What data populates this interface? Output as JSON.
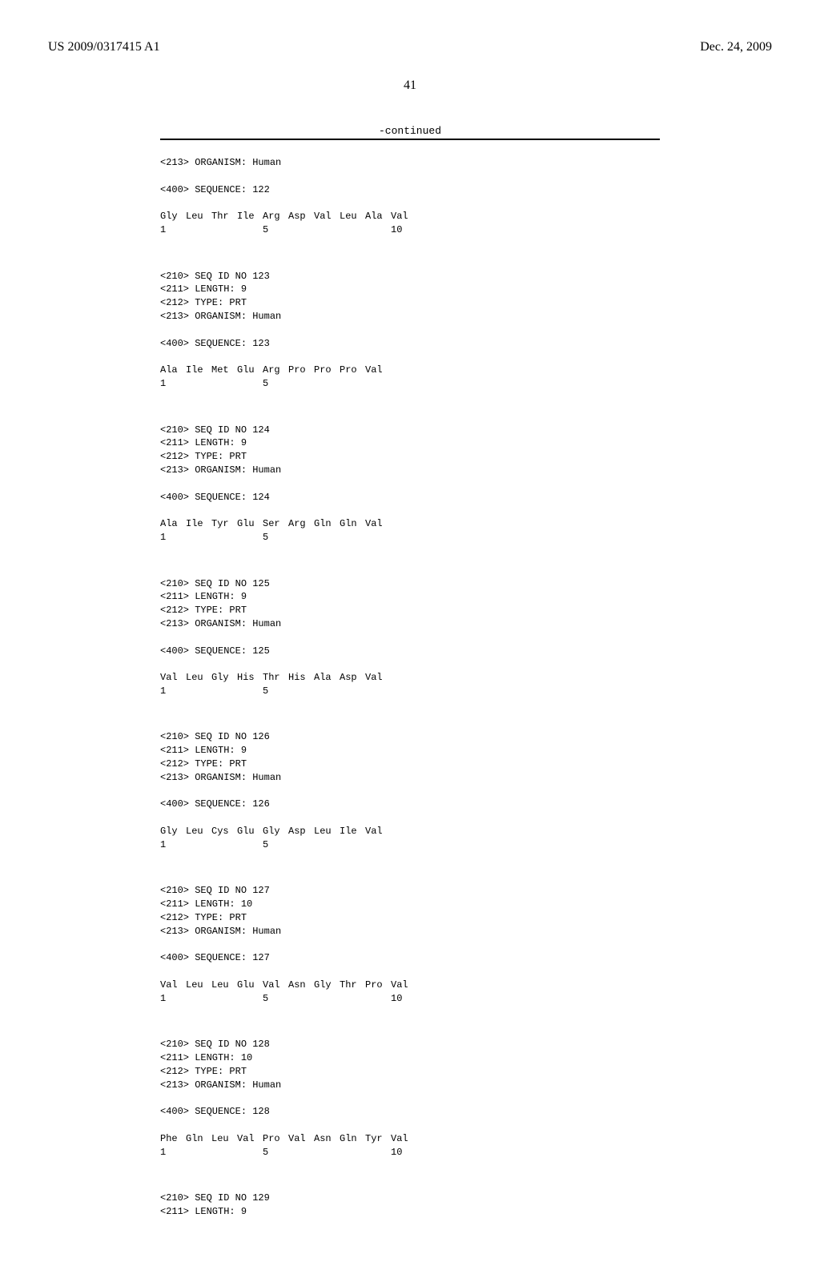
{
  "header": {
    "left": "US 2009/0317415 A1",
    "right": "Dec. 24, 2009"
  },
  "pageNumber": "41",
  "continuedLabel": "-continued",
  "sequences": [
    {
      "preHeader": [
        "<213> ORGANISM: Human"
      ],
      "seqLabel": "<400> SEQUENCE: 122",
      "aa": [
        "Gly",
        "Leu",
        "Thr",
        "Ile",
        "Arg",
        "Asp",
        "Val",
        "Leu",
        "Ala",
        "Val"
      ],
      "nums": [
        "1",
        "",
        "",
        "",
        "5",
        "",
        "",
        "",
        "",
        "10"
      ]
    },
    {
      "preHeader": [
        "<210> SEQ ID NO 123",
        "<211> LENGTH: 9",
        "<212> TYPE: PRT",
        "<213> ORGANISM: Human"
      ],
      "seqLabel": "<400> SEQUENCE: 123",
      "aa": [
        "Ala",
        "Ile",
        "Met",
        "Glu",
        "Arg",
        "Pro",
        "Pro",
        "Pro",
        "Val"
      ],
      "nums": [
        "1",
        "",
        "",
        "",
        "5",
        "",
        "",
        "",
        ""
      ]
    },
    {
      "preHeader": [
        "<210> SEQ ID NO 124",
        "<211> LENGTH: 9",
        "<212> TYPE: PRT",
        "<213> ORGANISM: Human"
      ],
      "seqLabel": "<400> SEQUENCE: 124",
      "aa": [
        "Ala",
        "Ile",
        "Tyr",
        "Glu",
        "Ser",
        "Arg",
        "Gln",
        "Gln",
        "Val"
      ],
      "nums": [
        "1",
        "",
        "",
        "",
        "5",
        "",
        "",
        "",
        ""
      ]
    },
    {
      "preHeader": [
        "<210> SEQ ID NO 125",
        "<211> LENGTH: 9",
        "<212> TYPE: PRT",
        "<213> ORGANISM: Human"
      ],
      "seqLabel": "<400> SEQUENCE: 125",
      "aa": [
        "Val",
        "Leu",
        "Gly",
        "His",
        "Thr",
        "His",
        "Ala",
        "Asp",
        "Val"
      ],
      "nums": [
        "1",
        "",
        "",
        "",
        "5",
        "",
        "",
        "",
        ""
      ]
    },
    {
      "preHeader": [
        "<210> SEQ ID NO 126",
        "<211> LENGTH: 9",
        "<212> TYPE: PRT",
        "<213> ORGANISM: Human"
      ],
      "seqLabel": "<400> SEQUENCE: 126",
      "aa": [
        "Gly",
        "Leu",
        "Cys",
        "Glu",
        "Gly",
        "Asp",
        "Leu",
        "Ile",
        "Val"
      ],
      "nums": [
        "1",
        "",
        "",
        "",
        "5",
        "",
        "",
        "",
        ""
      ]
    },
    {
      "preHeader": [
        "<210> SEQ ID NO 127",
        "<211> LENGTH: 10",
        "<212> TYPE: PRT",
        "<213> ORGANISM: Human"
      ],
      "seqLabel": "<400> SEQUENCE: 127",
      "aa": [
        "Val",
        "Leu",
        "Leu",
        "Glu",
        "Val",
        "Asn",
        "Gly",
        "Thr",
        "Pro",
        "Val"
      ],
      "nums": [
        "1",
        "",
        "",
        "",
        "5",
        "",
        "",
        "",
        "",
        "10"
      ]
    },
    {
      "preHeader": [
        "<210> SEQ ID NO 128",
        "<211> LENGTH: 10",
        "<212> TYPE: PRT",
        "<213> ORGANISM: Human"
      ],
      "seqLabel": "<400> SEQUENCE: 128",
      "aa": [
        "Phe",
        "Gln",
        "Leu",
        "Val",
        "Pro",
        "Val",
        "Asn",
        "Gln",
        "Tyr",
        "Val"
      ],
      "nums": [
        "1",
        "",
        "",
        "",
        "5",
        "",
        "",
        "",
        "",
        "10"
      ]
    },
    {
      "preHeader": [
        "<210> SEQ ID NO 129",
        "<211> LENGTH: 9"
      ],
      "seqLabel": null,
      "aa": [],
      "nums": []
    }
  ]
}
